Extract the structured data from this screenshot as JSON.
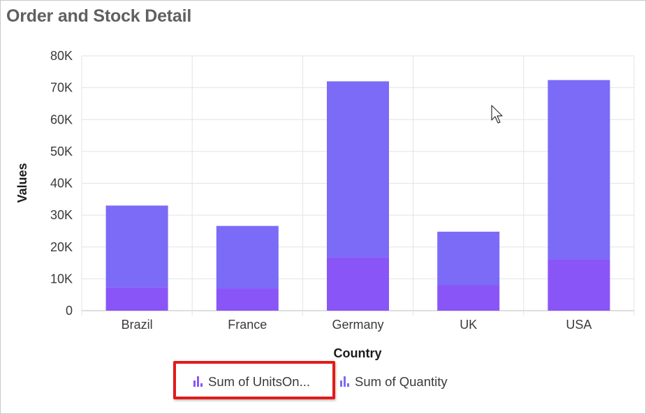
{
  "header": {
    "title": "Order and Stock Detail"
  },
  "chart_data": {
    "type": "bar",
    "stacked": true,
    "categories": [
      "Brazil",
      "France",
      "Germany",
      "UK",
      "USA"
    ],
    "series": [
      {
        "name": "Sum of UnitsOn...",
        "color": "#8a55f7",
        "values": [
          7400,
          7000,
          16800,
          8000,
          16200
        ]
      },
      {
        "name": "Sum of Quantity",
        "color": "#7b6bf6",
        "values": [
          25600,
          19600,
          55200,
          16800,
          56200
        ]
      }
    ],
    "xlabel": "Country",
    "ylabel": "Values",
    "ylim": [
      0,
      80000
    ],
    "yticks": [
      "0",
      "10K",
      "20K",
      "30K",
      "40K",
      "50K",
      "60K",
      "70K",
      "80K"
    ],
    "grid": true,
    "legend_position": "bottom"
  },
  "legend": {
    "items": [
      {
        "label": "Sum of UnitsOn..."
      },
      {
        "label": "Sum of Quantity"
      }
    ]
  }
}
